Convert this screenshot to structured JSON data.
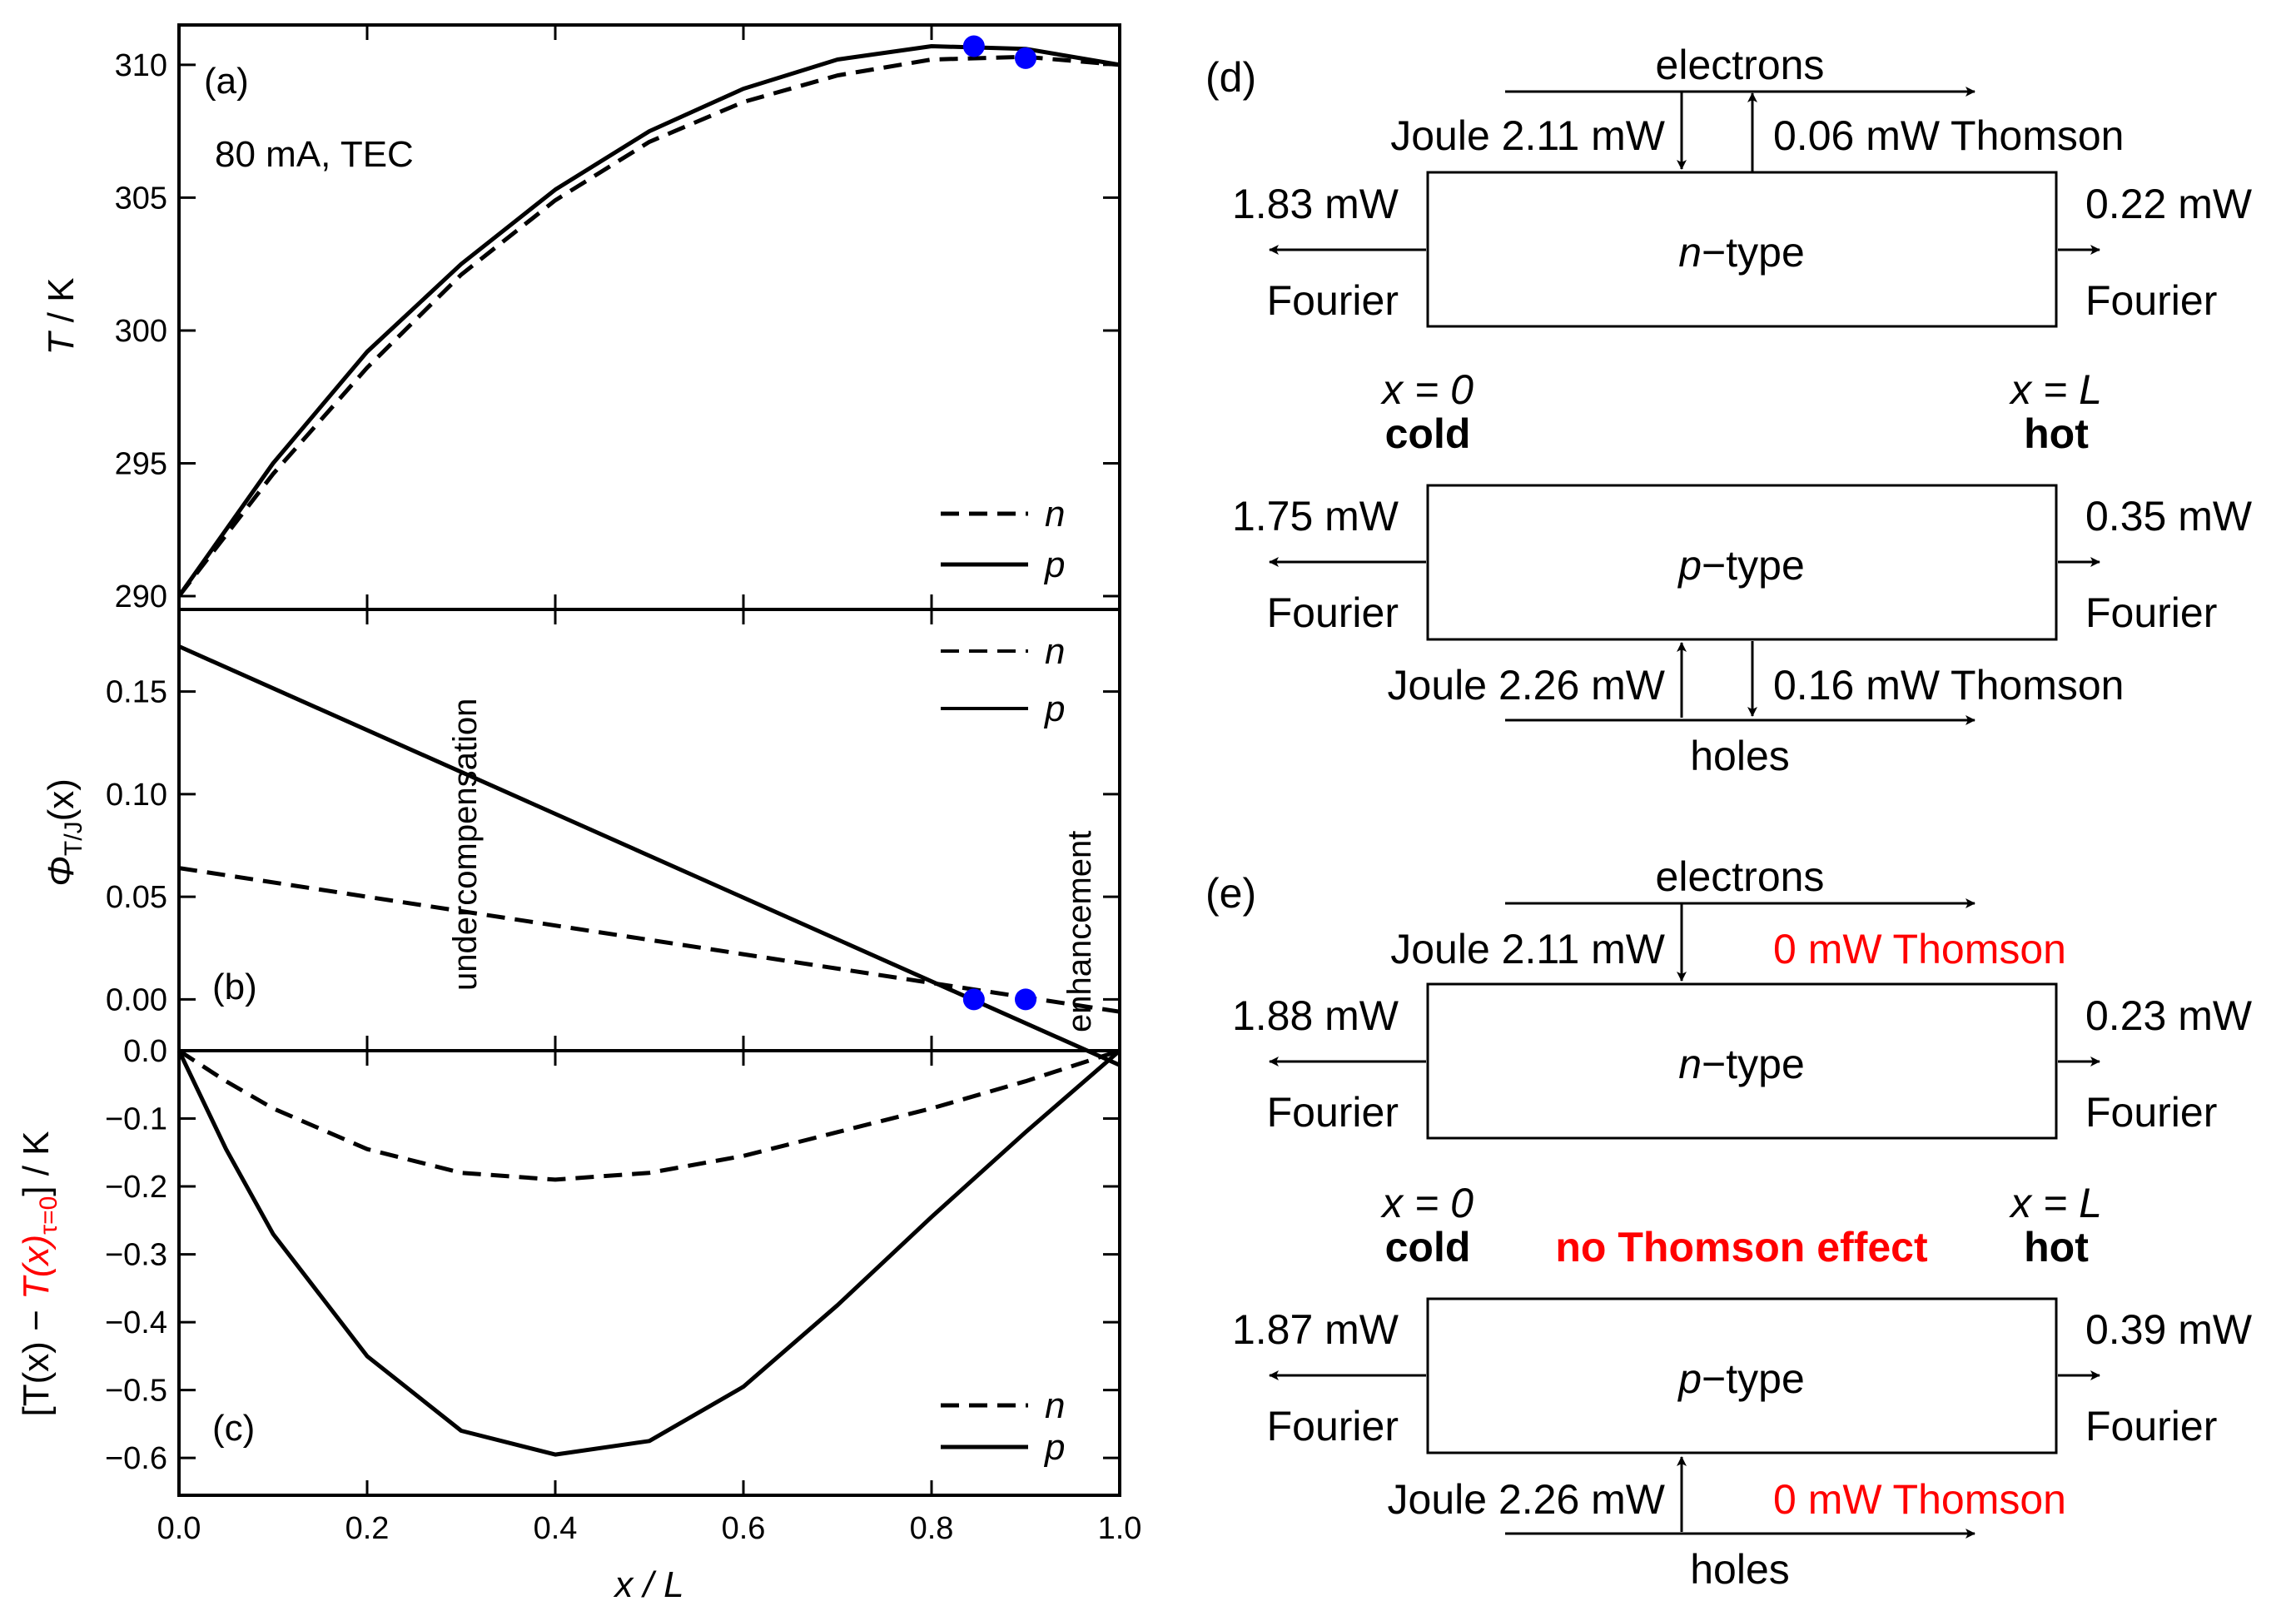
{
  "colors": {
    "line": "#000000",
    "marker": "#0000ff",
    "highlight": "#ff0000"
  },
  "chart_data": [
    {
      "panel": "(a)",
      "type": "line",
      "annotation": "80 mA, TEC",
      "ylabel_italic": "T",
      "ylabel_rest": " / K",
      "ylim": [
        289.5,
        311.5
      ],
      "yticks": [
        "290",
        "295",
        "300",
        "305",
        "310"
      ],
      "xlim": [
        0,
        1
      ],
      "legend": "bottom-right",
      "series": [
        {
          "name": "n",
          "style": "dashed",
          "x": [
            0,
            0.1,
            0.2,
            0.3,
            0.4,
            0.5,
            0.6,
            0.7,
            0.8,
            0.9,
            1.0
          ],
          "y": [
            290.0,
            294.6,
            298.6,
            302.1,
            304.9,
            307.1,
            308.6,
            309.6,
            310.2,
            310.3,
            310.0
          ]
        },
        {
          "name": "p",
          "style": "solid",
          "x": [
            0,
            0.1,
            0.2,
            0.3,
            0.4,
            0.5,
            0.6,
            0.7,
            0.8,
            0.9,
            1.0
          ],
          "y": [
            290.0,
            295.0,
            299.2,
            302.5,
            305.3,
            307.5,
            309.1,
            310.2,
            310.7,
            310.6,
            310.0
          ]
        }
      ],
      "markers": [
        {
          "x": 0.845,
          "y": 310.7
        },
        {
          "x": 0.9,
          "y": 310.25
        }
      ]
    },
    {
      "panel": "(b)",
      "type": "line",
      "ylabel_main": "Φ",
      "ylabel_sub": "T/J",
      "ylabel_rest": "(x)",
      "ylim": [
        -0.025,
        0.19
      ],
      "yticks": [
        "0.00",
        "0.05",
        "0.10",
        "0.15"
      ],
      "xlim": [
        0,
        1
      ],
      "legend": "top-right",
      "annotations": [
        "undercompensation",
        "enhancement"
      ],
      "series": [
        {
          "name": "n",
          "style": "dashed",
          "x": [
            0,
            1.0
          ],
          "y": [
            0.064,
            -0.006
          ]
        },
        {
          "name": "p",
          "style": "solid",
          "x": [
            0,
            1.0
          ],
          "y": [
            0.172,
            -0.032
          ]
        }
      ],
      "markers": [
        {
          "x": 0.845,
          "y": 0.0
        },
        {
          "x": 0.9,
          "y": 0.0
        }
      ]
    },
    {
      "panel": "(c)",
      "type": "line",
      "ylabel_pre": "[T(x) − ",
      "ylabel_red": "T(x)",
      "ylabel_sub": "τ=0",
      "ylabel_post": "] / K",
      "ylim": [
        -0.655,
        0.0
      ],
      "yticks": [
        "0.0",
        "−0.1",
        "−0.2",
        "−0.3",
        "−0.4",
        "−0.5",
        "−0.6"
      ],
      "xlim": [
        0,
        1
      ],
      "xticks": [
        "0.0",
        "0.2",
        "0.4",
        "0.6",
        "0.8",
        "1.0"
      ],
      "xlabel": "x / L",
      "legend": "bottom-right",
      "series": [
        {
          "name": "n",
          "style": "dashed",
          "x": [
            0,
            0.05,
            0.1,
            0.2,
            0.3,
            0.4,
            0.5,
            0.6,
            0.7,
            0.8,
            0.9,
            1.0
          ],
          "y": [
            0,
            -0.045,
            -0.085,
            -0.145,
            -0.18,
            -0.19,
            -0.18,
            -0.155,
            -0.12,
            -0.085,
            -0.045,
            0
          ]
        },
        {
          "name": "p",
          "style": "solid",
          "x": [
            0,
            0.05,
            0.1,
            0.2,
            0.3,
            0.4,
            0.5,
            0.6,
            0.7,
            0.8,
            0.9,
            1.0
          ],
          "y": [
            0,
            -0.145,
            -0.27,
            -0.45,
            -0.56,
            -0.595,
            -0.575,
            -0.495,
            -0.375,
            -0.245,
            -0.12,
            0
          ]
        }
      ]
    }
  ],
  "diagrams": {
    "d": {
      "label": "(d)",
      "n": {
        "carrier": "electrons",
        "joule": "Joule 2.11 mW",
        "thomson": "0.06 mW Thomson",
        "left_power": "1.83 mW",
        "left_name": "Fourier",
        "right_power": "0.22 mW",
        "right_name": "Fourier",
        "type_italic": "n",
        "type_rest": "−type"
      },
      "x0": "x = 0",
      "cold": "cold",
      "xL": "x = L",
      "hot": "hot",
      "p": {
        "carrier": "holes",
        "joule": "Joule 2.26 mW",
        "thomson": "0.16 mW Thomson",
        "left_power": "1.75 mW",
        "left_name": "Fourier",
        "right_power": "0.35 mW",
        "right_name": "Fourier",
        "type_italic": "p",
        "type_rest": "−type"
      }
    },
    "e": {
      "label": "(e)",
      "n": {
        "carrier": "electrons",
        "joule": "Joule 2.11 mW",
        "thomson": "0 mW Thomson",
        "left_power": "1.88 mW",
        "left_name": "Fourier",
        "right_power": "0.23 mW",
        "right_name": "Fourier",
        "type_italic": "n",
        "type_rest": "−type"
      },
      "x0": "x = 0",
      "cold": "cold",
      "xL": "x = L",
      "hot": "hot",
      "middle": "no Thomson effect",
      "p": {
        "carrier": "holes",
        "joule": "Joule 2.26 mW",
        "thomson": "0 mW Thomson",
        "left_power": "1.87 mW",
        "left_name": "Fourier",
        "right_power": "0.39 mW",
        "right_name": "Fourier",
        "type_italic": "p",
        "type_rest": "−type"
      }
    }
  }
}
